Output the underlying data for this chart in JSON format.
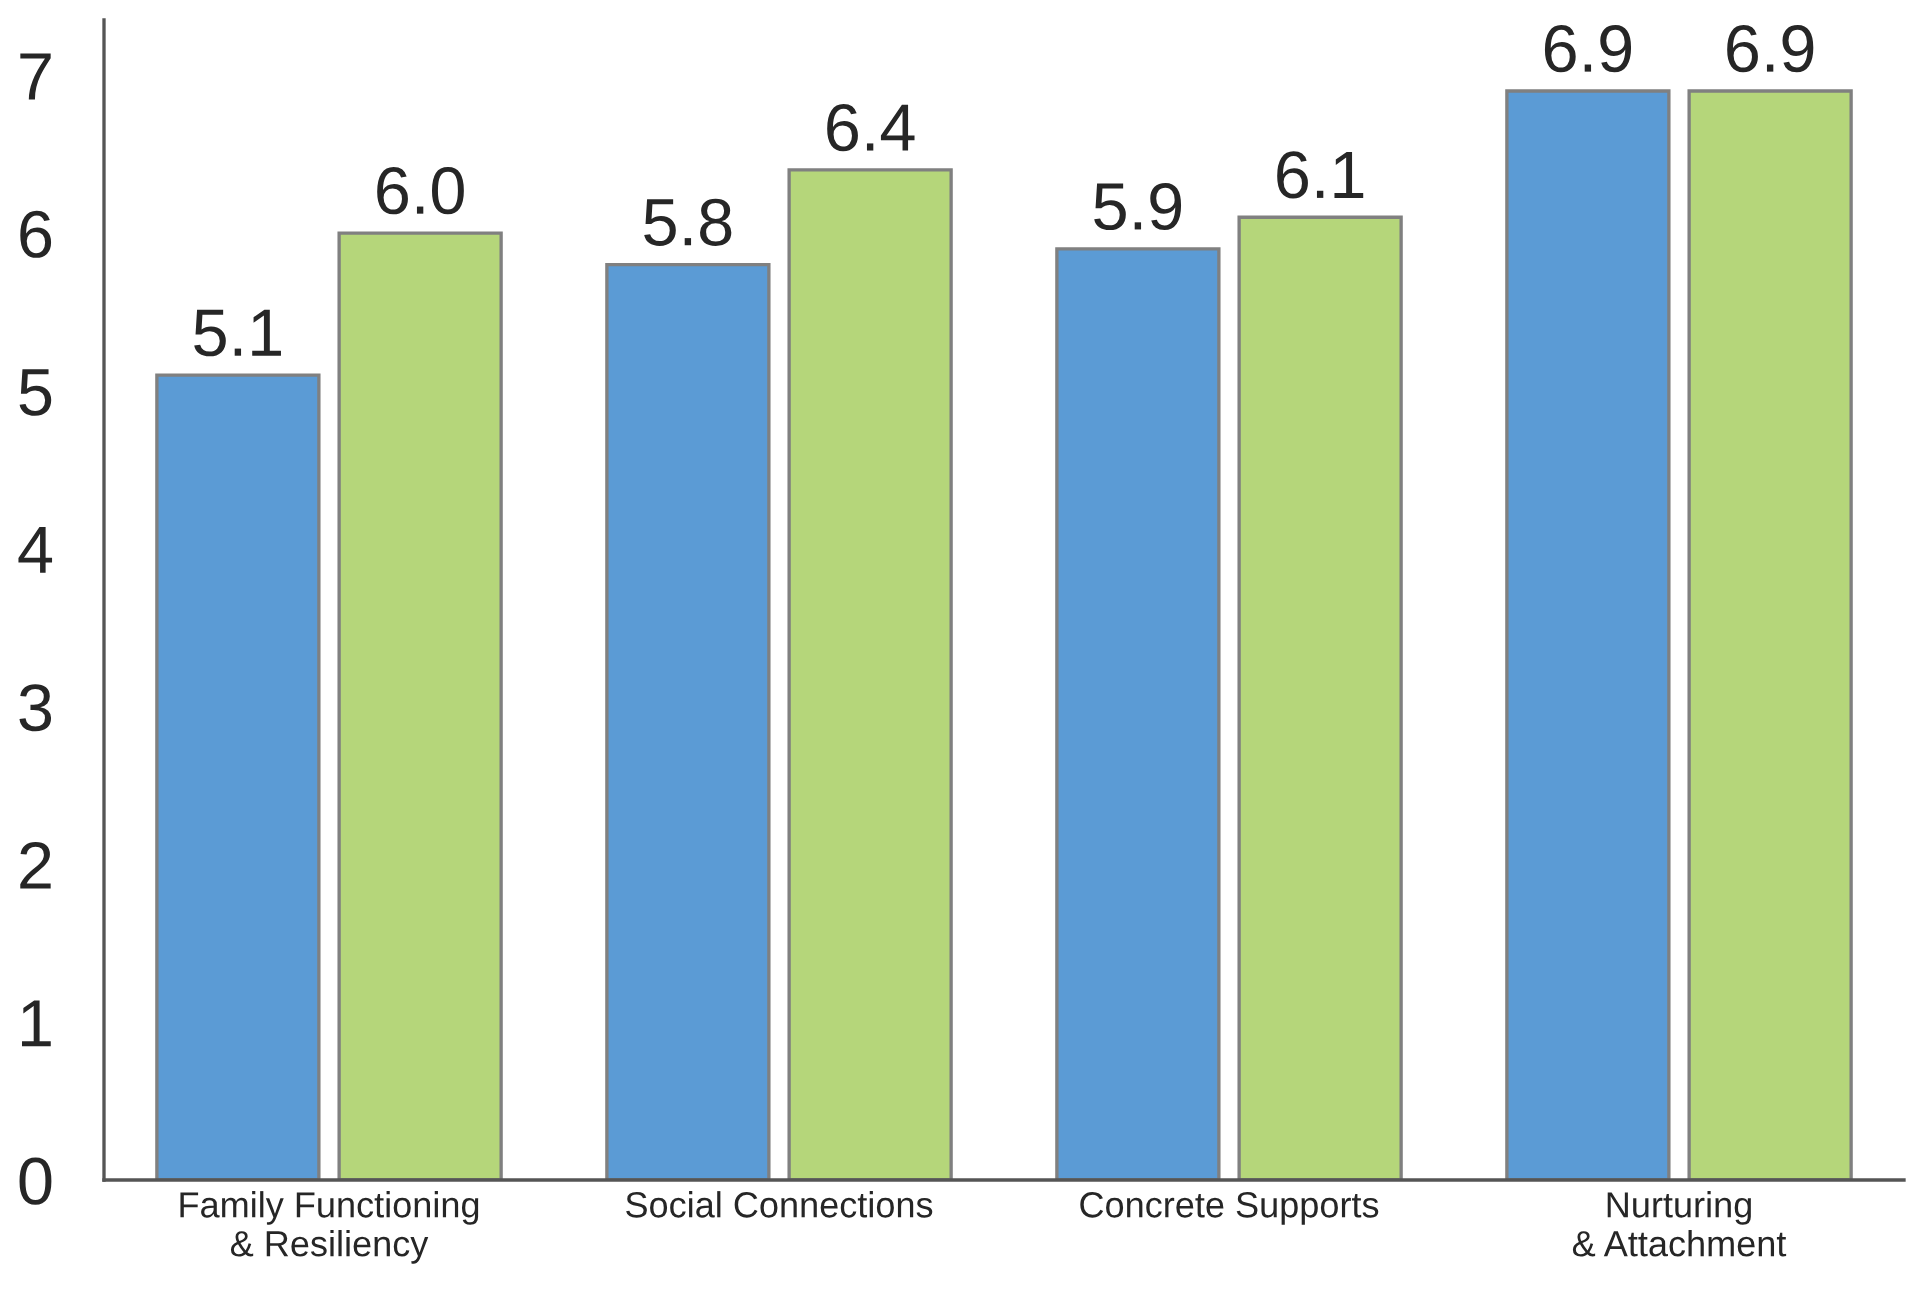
{
  "chart_data": {
    "type": "bar",
    "categories": [
      "Family Functioning\n& Resiliency",
      "Social Connections",
      "Concrete Supports",
      "Nurturing\n& Attachment"
    ],
    "series": [
      {
        "color": "#5b9bd5",
        "values": [
          5.1,
          5.8,
          5.9,
          6.9
        ],
        "value_labels": [
          "5.1",
          "5.8",
          "5.9",
          "6.9"
        ]
      },
      {
        "color": "#b5d67a",
        "values": [
          6.0,
          6.4,
          6.1,
          6.9
        ],
        "value_labels": [
          "6.0",
          "6.4",
          "6.1",
          "6.9"
        ]
      }
    ],
    "ylim": [
      0,
      7.35
    ],
    "yticks": [
      0,
      1,
      2,
      3,
      4,
      5,
      6,
      7
    ],
    "grid": false,
    "legend": false
  }
}
